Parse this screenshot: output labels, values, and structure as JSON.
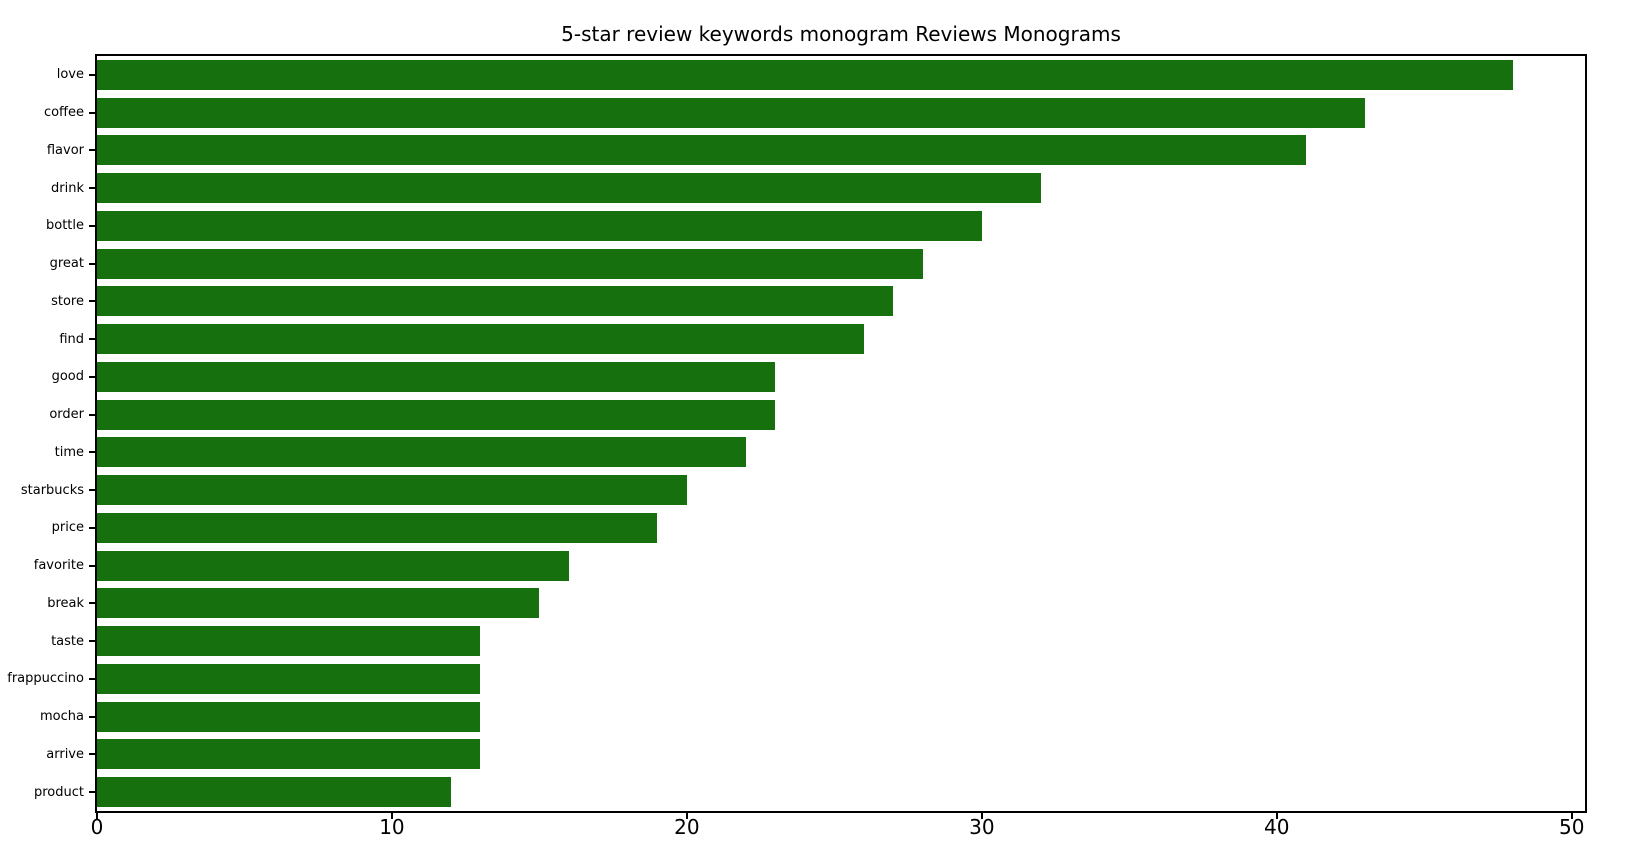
{
  "chart_data": {
    "type": "bar",
    "orientation": "horizontal",
    "title": "5-star review keywords monogram Reviews Monograms",
    "categories": [
      "love",
      "coffee",
      "flavor",
      "drink",
      "bottle",
      "great",
      "store",
      "find",
      "good",
      "order",
      "time",
      "starbucks",
      "price",
      "favorite",
      "break",
      "taste",
      "frappuccino",
      "mocha",
      "arrive",
      "product"
    ],
    "values": [
      48,
      43,
      41,
      32,
      30,
      28,
      27,
      26,
      23,
      23,
      22,
      20,
      19,
      16,
      15,
      13,
      13,
      13,
      13,
      12
    ],
    "xlabel": "",
    "ylabel": "",
    "x_ticks": [
      0,
      10,
      20,
      30,
      40,
      50
    ],
    "xlim": [
      0,
      50.45
    ],
    "grid": false,
    "legend": false,
    "bar_color": "#16700e",
    "axis_color": "#000000",
    "text_color": "#000000",
    "background_color": "#ffffff"
  }
}
